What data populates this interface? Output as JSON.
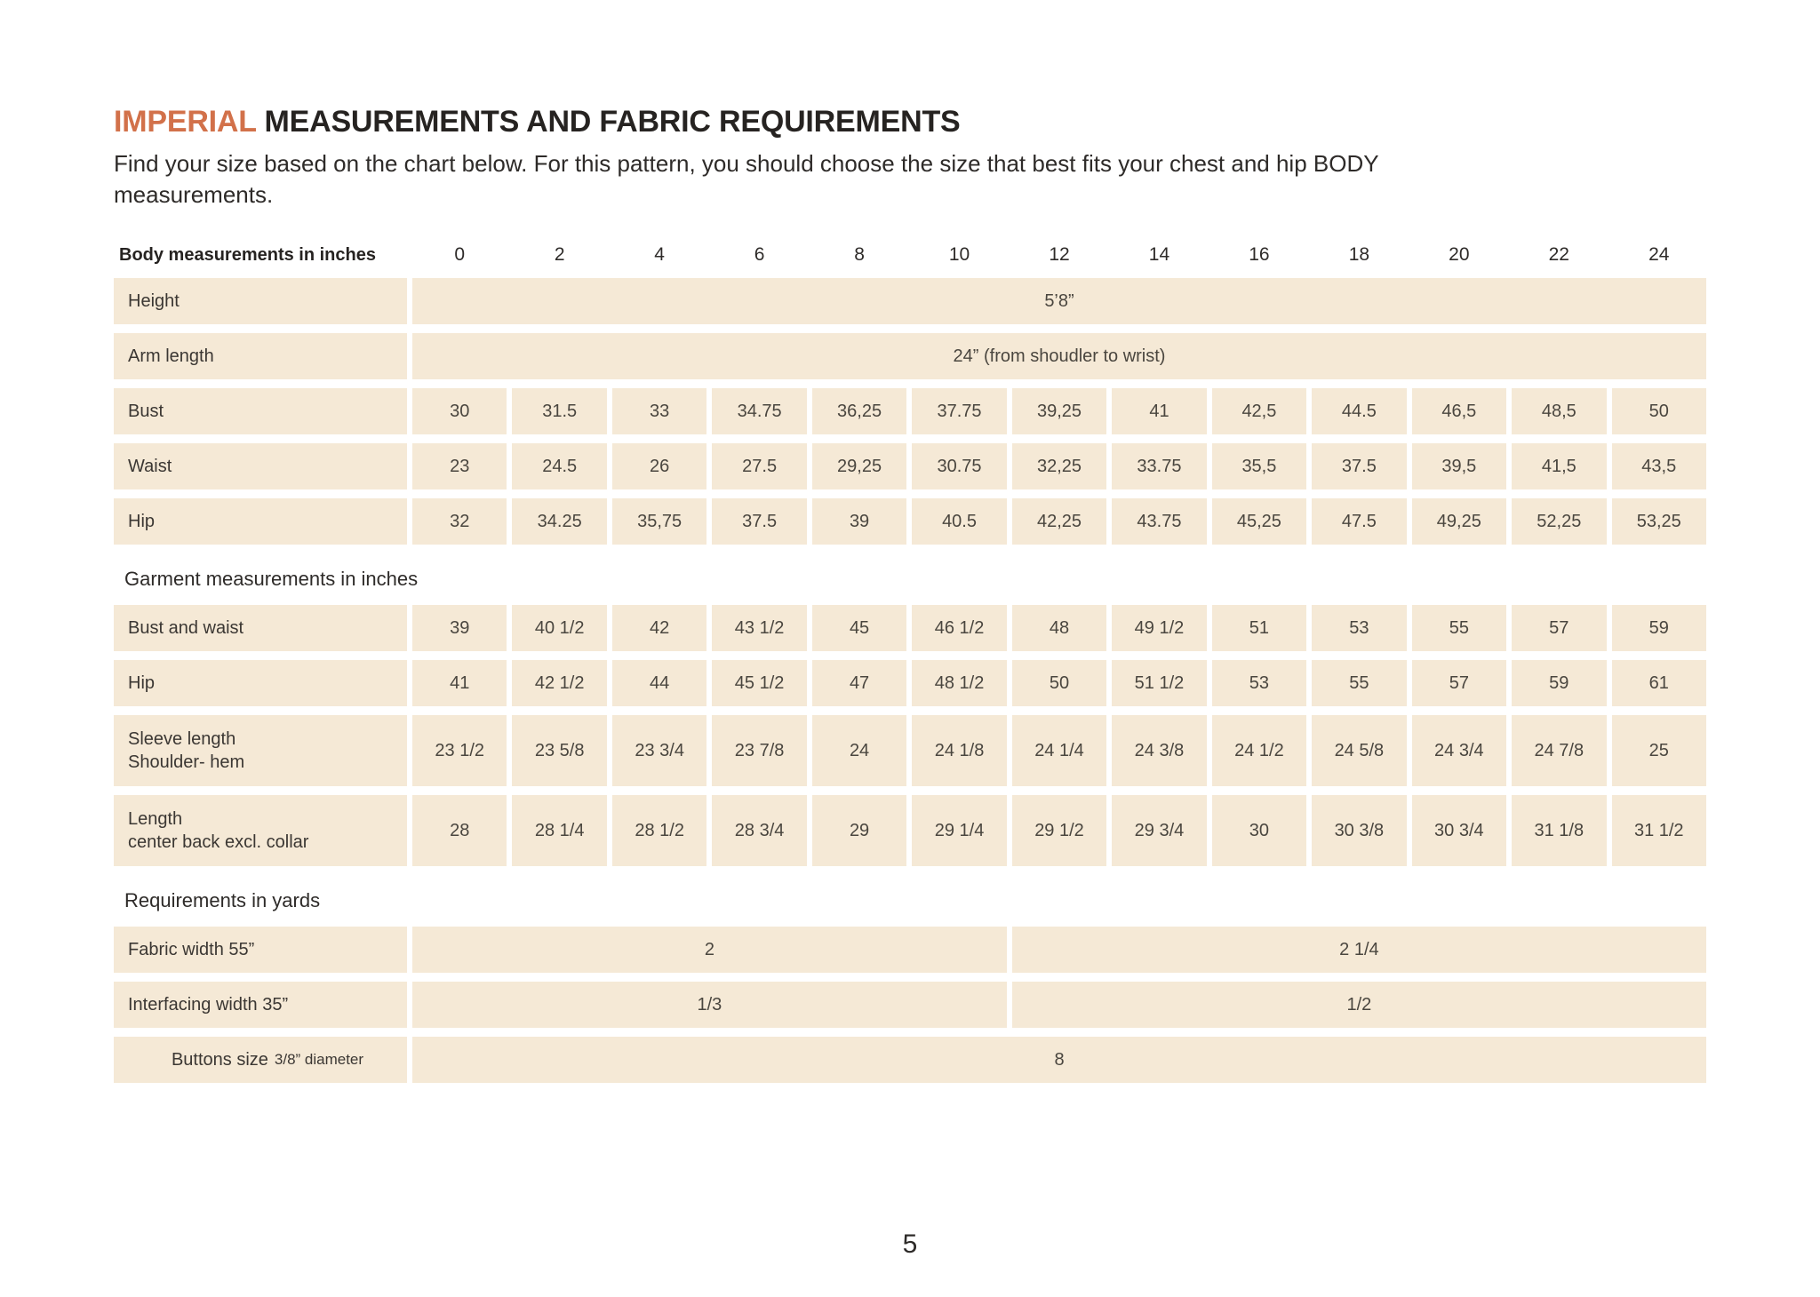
{
  "page": {
    "title_highlight": "IMPERIAL",
    "title_rest": "MEASUREMENTS AND FABRIC REQUIREMENTS",
    "subtitle_lines": [
      "Find your size based on the chart below. For this pattern, you should choose the size that best fits your chest and hip BODY",
      "measurements."
    ],
    "page_number": "5",
    "colors": {
      "accent": "#d2714a",
      "cell_bg": "#f5e9d6"
    }
  },
  "table": {
    "header_label": "Body measurements in inches",
    "sizes": [
      "0",
      "2",
      "4",
      "6",
      "8",
      "10",
      "12",
      "14",
      "16",
      "18",
      "20",
      "22",
      "24"
    ],
    "body_rows": [
      {
        "label": "Height",
        "span_value": "5’8”"
      },
      {
        "label": "Arm length",
        "span_value": "24” (from shoudler to wrist)"
      },
      {
        "label": "Bust",
        "values": [
          "30",
          "31.5",
          "33",
          "34.75",
          "36,25",
          "37.75",
          "39,25",
          "41",
          "42,5",
          "44.5",
          "46,5",
          "48,5",
          "50"
        ]
      },
      {
        "label": "Waist",
        "values": [
          "23",
          "24.5",
          "26",
          "27.5",
          "29,25",
          "30.75",
          "32,25",
          "33.75",
          "35,5",
          "37.5",
          "39,5",
          "41,5",
          "43,5"
        ]
      },
      {
        "label": "Hip",
        "values": [
          "32",
          "34.25",
          "35,75",
          "37.5",
          "39",
          "40.5",
          "42,25",
          "43.75",
          "45,25",
          "47.5",
          "49,25",
          "52,25",
          "53,25"
        ]
      }
    ],
    "garment_section_label": "Garment measurements in inches",
    "garment_rows": [
      {
        "label": "Bust and waist",
        "values": [
          "39",
          "40 1/2",
          "42",
          "43 1/2",
          "45",
          "46 1/2",
          "48",
          "49 1/2",
          "51",
          "53",
          "55",
          "57",
          "59"
        ]
      },
      {
        "label": "Hip",
        "values": [
          "41",
          "42 1/2",
          "44",
          "45 1/2",
          "47",
          "48 1/2",
          "50",
          "51 1/2",
          "53",
          "55",
          "57",
          "59",
          "61"
        ]
      },
      {
        "label": "Sleeve length",
        "label2": "Shoulder- hem",
        "values": [
          "23 1/2",
          "23 5/8",
          "23 3/4",
          "23 7/8",
          "24",
          "24 1/8",
          "24 1/4",
          "24 3/8",
          "24 1/2",
          "24 5/8",
          "24 3/4",
          "24 7/8",
          "25"
        ]
      },
      {
        "label": "Length",
        "label2": "center back excl. collar",
        "values": [
          "28",
          "28 1/4",
          "28 1/2",
          "28 3/4",
          "29",
          "29 1/4",
          "29 1/2",
          "29 3/4",
          "30",
          "30 3/8",
          "30 3/4",
          "31 1/8",
          "31 1/2"
        ]
      }
    ],
    "requirements_section_label": "Requirements in yards",
    "requirement_rows": [
      {
        "label": "Fabric width 55”",
        "left_value": "2",
        "right_value": "2 1/4"
      },
      {
        "label": "Interfacing width 35”",
        "left_value": "1/3",
        "right_value": "1/2"
      },
      {
        "label_main": "Buttons size",
        "label_small": "3/8” diameter",
        "full_value": "8"
      }
    ]
  }
}
